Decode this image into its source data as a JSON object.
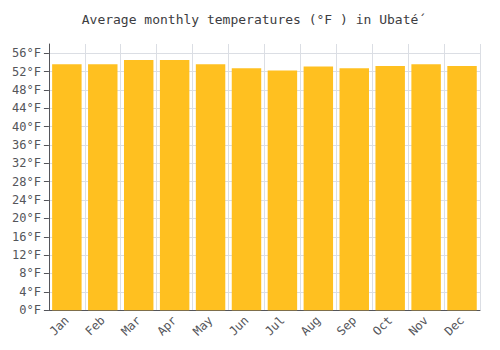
{
  "chart_data": {
    "type": "bar",
    "title": "Average monthly temperatures (°F ) in Ubaté́",
    "categories": [
      "Jan",
      "Feb",
      "Mar",
      "Apr",
      "May",
      "Jun",
      "Jul",
      "Aug",
      "Sep",
      "Oct",
      "Nov",
      "Dec"
    ],
    "values": [
      53.6,
      53.6,
      54.5,
      54.5,
      53.6,
      52.7,
      52.2,
      53.1,
      52.7,
      53.2,
      53.6,
      53.2
    ],
    "color": "#FFC020",
    "ylim": [
      0,
      58
    ],
    "yticks": [
      {
        "value": 0,
        "label": "0°F"
      },
      {
        "value": 4,
        "label": "4°F"
      },
      {
        "value": 8,
        "label": "8°F"
      },
      {
        "value": 12,
        "label": "12°F"
      },
      {
        "value": 16,
        "label": "16°F"
      },
      {
        "value": 20,
        "label": "20°F"
      },
      {
        "value": 24,
        "label": "24°F"
      },
      {
        "value": 28,
        "label": "28°F"
      },
      {
        "value": 32,
        "label": "32°F"
      },
      {
        "value": 36,
        "label": "36°F"
      },
      {
        "value": 40,
        "label": "40°F"
      },
      {
        "value": 44,
        "label": "44°F"
      },
      {
        "value": 48,
        "label": "48°F"
      },
      {
        "value": 52,
        "label": "52°F"
      },
      {
        "value": 56,
        "label": "56°F"
      }
    ],
    "grid": true
  }
}
